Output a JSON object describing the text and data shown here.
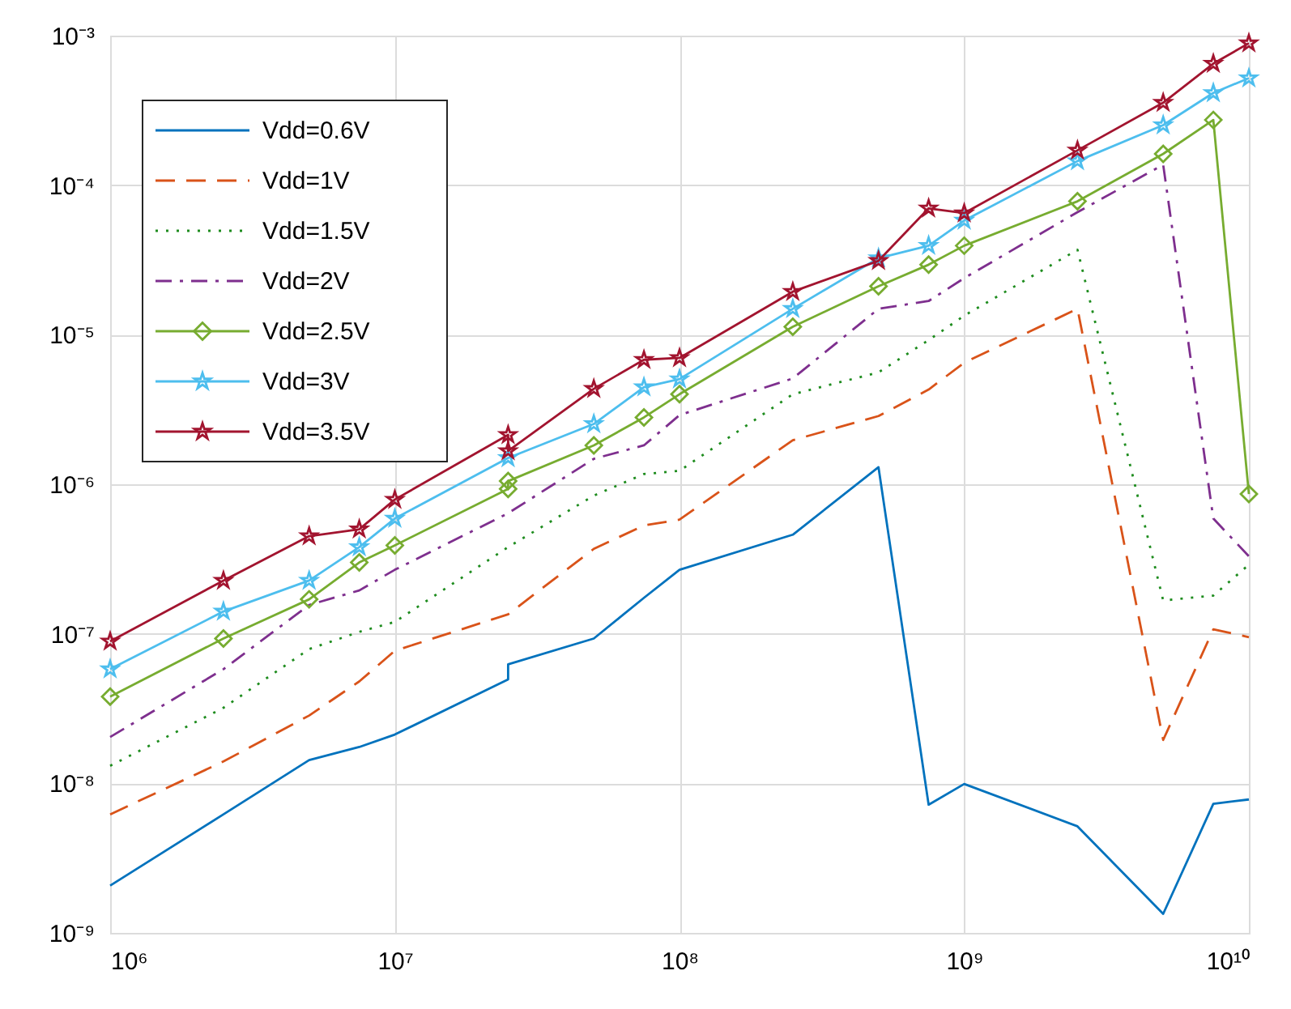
{
  "chart_data": {
    "type": "line",
    "log": "xy",
    "grid": true,
    "legend": "top left",
    "xlim": [
      1000000,
      10000000000
    ],
    "xticks": [
      {
        "value": 1000000,
        "label": "10⁶"
      },
      {
        "value": 10000000,
        "label": "10⁷"
      },
      {
        "value": 100000000,
        "label": "10⁸"
      },
      {
        "value": 1000000000,
        "label": "10⁹"
      },
      {
        "value": 10000000000,
        "label": "10¹⁰"
      }
    ],
    "ylim": [
      1e-09,
      0.001
    ],
    "yticks": [
      {
        "value": 1e-09,
        "label": "10⁻⁹"
      },
      {
        "value": 1e-08,
        "label": "10⁻⁸"
      },
      {
        "value": 1e-07,
        "label": "10⁻⁷"
      },
      {
        "value": 1e-06,
        "label": "10⁻⁶"
      },
      {
        "value": 1e-05,
        "label": "10⁻⁵"
      },
      {
        "value": 0.0001,
        "label": "10⁻⁴"
      },
      {
        "value": 0.001,
        "label": "10⁻³"
      }
    ],
    "series": [
      {
        "name": "Vdd=0.6V",
        "color": "#0072bd",
        "line_style": "solid",
        "marker": "none",
        "x": [
          1000000,
          2500000,
          5000000,
          7500000,
          10000000,
          25000000,
          25000000,
          50000000,
          75000000,
          100000000,
          250000000,
          500000000,
          750000000,
          1000000000,
          2500000000,
          5000000000,
          7500000000,
          10000000000
        ],
        "values": [
          2.07e-09,
          6.2e-09,
          1.43e-08,
          1.75e-08,
          2.12e-08,
          4.95e-08,
          6.25e-08,
          9.3e-08,
          1.74e-07,
          2.68e-07,
          4.6e-07,
          1.3e-06,
          7.2e-09,
          9.9e-09,
          5.16e-09,
          1.34e-09,
          7.3e-09,
          7.8e-09
        ]
      },
      {
        "name": "Vdd=1V",
        "color": "#d95319",
        "line_style": "dashed",
        "marker": "none",
        "x": [
          1000000,
          2500000,
          5000000,
          7500000,
          10000000,
          25000000,
          50000000,
          75000000,
          100000000,
          250000000,
          500000000,
          750000000,
          1000000000,
          2500000000,
          5000000000,
          7500000000,
          10000000000
        ],
        "values": [
          6.2e-09,
          1.4e-08,
          2.84e-08,
          4.8e-08,
          7.7e-08,
          1.35e-07,
          3.7e-07,
          5.3e-07,
          5.8e-07,
          1.97e-06,
          2.86e-06,
          4.3e-06,
          6.5e-06,
          1.49e-05,
          1.95e-08,
          1.07e-07,
          9.5e-08
        ]
      },
      {
        "name": "Vdd=1.5V",
        "color": "#1e8c1e",
        "line_style": "dotted",
        "marker": "none",
        "x": [
          1000000,
          2500000,
          5000000,
          7500000,
          10000000,
          25000000,
          50000000,
          75000000,
          100000000,
          250000000,
          500000000,
          750000000,
          1000000000,
          2500000000,
          5000000000,
          7500000000,
          10000000000
        ],
        "values": [
          1.31e-08,
          3.2e-08,
          7.9e-08,
          1.03e-07,
          1.2e-07,
          3.8e-07,
          8.4e-07,
          1.17e-06,
          1.23e-06,
          4e-06,
          5.6e-06,
          9.2e-06,
          1.34e-05,
          3.7e-05,
          1.67e-07,
          1.8e-07,
          2.9e-07
        ]
      },
      {
        "name": "Vdd=2V",
        "color": "#7e2f8e",
        "line_style": "dashdot",
        "marker": "none",
        "x": [
          1000000,
          2500000,
          5000000,
          7500000,
          10000000,
          25000000,
          50000000,
          75000000,
          100000000,
          250000000,
          500000000,
          750000000,
          1000000000,
          2500000000,
          5000000000,
          7500000000,
          10000000000
        ],
        "values": [
          2.04e-08,
          5.8e-08,
          1.56e-07,
          1.95e-07,
          2.68e-07,
          6.4e-07,
          1.48e-06,
          1.82e-06,
          2.9e-06,
          5.1e-06,
          1.49e-05,
          1.68e-05,
          2.39e-05,
          6.6e-05,
          0.000137,
          5.9e-07,
          3.3e-07
        ]
      },
      {
        "name": "Vdd=2.5V",
        "color": "#77ac30",
        "line_style": "solid",
        "marker": "diamond",
        "x": [
          1000000,
          2500000,
          5000000,
          7500000,
          10000000,
          25000000,
          25000000,
          50000000,
          75000000,
          100000000,
          250000000,
          500000000,
          750000000,
          1000000000,
          2500000000,
          5000000000,
          7500000000,
          10000000000
        ],
        "values": [
          3.8e-08,
          9.3e-08,
          1.7e-07,
          3e-07,
          3.9e-07,
          9.3e-07,
          1.05e-06,
          1.82e-06,
          2.8e-06,
          4e-06,
          1.13e-05,
          2.11e-05,
          2.94e-05,
          3.94e-05,
          7.8e-05,
          0.000162,
          0.000273,
          8.6e-07
        ]
      },
      {
        "name": "Vdd=3V",
        "color": "#4dbeee",
        "line_style": "solid",
        "marker": "star",
        "x": [
          1000000,
          2500000,
          5000000,
          7500000,
          10000000,
          25000000,
          50000000,
          75000000,
          100000000,
          250000000,
          500000000,
          750000000,
          1000000000,
          2500000000,
          5000000000,
          7500000000,
          10000000000
        ],
        "values": [
          5.8e-08,
          1.41e-07,
          2.27e-07,
          3.8e-07,
          5.9e-07,
          1.5e-06,
          2.53e-06,
          4.46e-06,
          5.05e-06,
          1.49e-05,
          3.25e-05,
          3.94e-05,
          5.8e-05,
          0.000145,
          0.000252,
          0.000414,
          0.00052
        ]
      },
      {
        "name": "Vdd=3.5V",
        "color": "#a2142f",
        "line_style": "solid",
        "marker": "star",
        "x": [
          1000000,
          2500000,
          5000000,
          7500000,
          10000000,
          25000000,
          25000000,
          50000000,
          75000000,
          100000000,
          250000000,
          500000000,
          750000000,
          1000000000,
          2500000000,
          5000000000,
          7500000000,
          10000000000
        ],
        "values": [
          8.9e-08,
          2.27e-07,
          4.5e-07,
          5e-07,
          7.9e-07,
          2.14e-06,
          1.67e-06,
          4.35e-06,
          6.8e-06,
          7e-06,
          1.94e-05,
          3.12e-05,
          7e-05,
          6.5e-05,
          0.000171,
          0.000356,
          0.00065,
          0.00089
        ]
      }
    ]
  }
}
